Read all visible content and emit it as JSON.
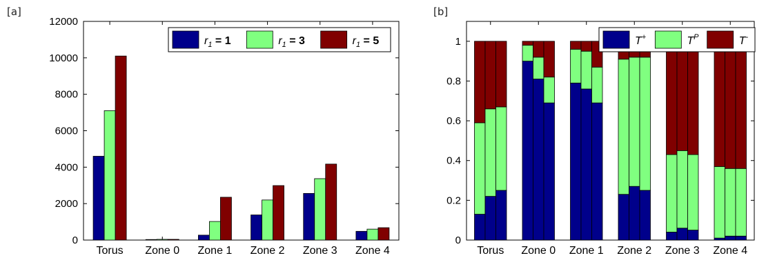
{
  "chart_data": [
    {
      "panel_label": "[a]",
      "type": "bar",
      "categories": [
        "Torus",
        "Zone 0",
        "Zone 1",
        "Zone 2",
        "Zone 3",
        "Zone 4"
      ],
      "ylim": [
        0,
        12000
      ],
      "yticks": [
        "0",
        "2000",
        "4000",
        "6000",
        "8000",
        "10000",
        "12000"
      ],
      "legend_placement": "top-right",
      "series": [
        {
          "name_var": "r",
          "name_sub": "1",
          "name_rest": " = 1",
          "color": "#00008B",
          "values": [
            4600,
            30,
            270,
            1380,
            2560,
            480
          ]
        },
        {
          "name_var": "r",
          "name_sub": "1",
          "name_rest": " = 3",
          "color": "#80FF80",
          "values": [
            7100,
            40,
            1020,
            2200,
            3370,
            600
          ]
        },
        {
          "name_var": "r",
          "name_sub": "1",
          "name_rest": " = 5",
          "color": "#800000",
          "values": [
            10100,
            40,
            2350,
            2990,
            4170,
            680
          ]
        }
      ]
    },
    {
      "panel_label": "[b]",
      "type": "bar",
      "stacked": true,
      "categories": [
        "Torus",
        "Zone 0",
        "Zone 1",
        "Zone 2",
        "Zone 3",
        "Zone 4"
      ],
      "ylim": [
        0,
        1.1
      ],
      "yticks": [
        "0",
        "0.2",
        "0.4",
        "0.6",
        "0.8",
        "1"
      ],
      "legend_placement": "top-right",
      "series": [
        {
          "name_var": "T",
          "name_sup": "+",
          "color": "#00008B",
          "values": [
            [
              0.13,
              0.22,
              0.25
            ],
            [
              0.9,
              0.81,
              0.69
            ],
            [
              0.79,
              0.76,
              0.69
            ],
            [
              0.23,
              0.27,
              0.25
            ],
            [
              0.04,
              0.06,
              0.05
            ],
            [
              0.01,
              0.02,
              0.02
            ]
          ]
        },
        {
          "name_var": "T",
          "name_sup": "P",
          "color": "#80FF80",
          "values": [
            [
              0.46,
              0.44,
              0.42
            ],
            [
              0.08,
              0.11,
              0.13
            ],
            [
              0.17,
              0.19,
              0.18
            ],
            [
              0.68,
              0.65,
              0.67
            ],
            [
              0.39,
              0.39,
              0.38
            ],
            [
              0.36,
              0.34,
              0.34
            ]
          ]
        },
        {
          "name_var": "T",
          "name_sup": "-",
          "color": "#800000",
          "values": [
            [
              0.41,
              0.34,
              0.33
            ],
            [
              0.02,
              0.08,
              0.18
            ],
            [
              0.04,
              0.05,
              0.13
            ],
            [
              0.09,
              0.08,
              0.08
            ],
            [
              0.57,
              0.55,
              0.57
            ],
            [
              0.63,
              0.64,
              0.64
            ]
          ]
        }
      ]
    }
  ]
}
